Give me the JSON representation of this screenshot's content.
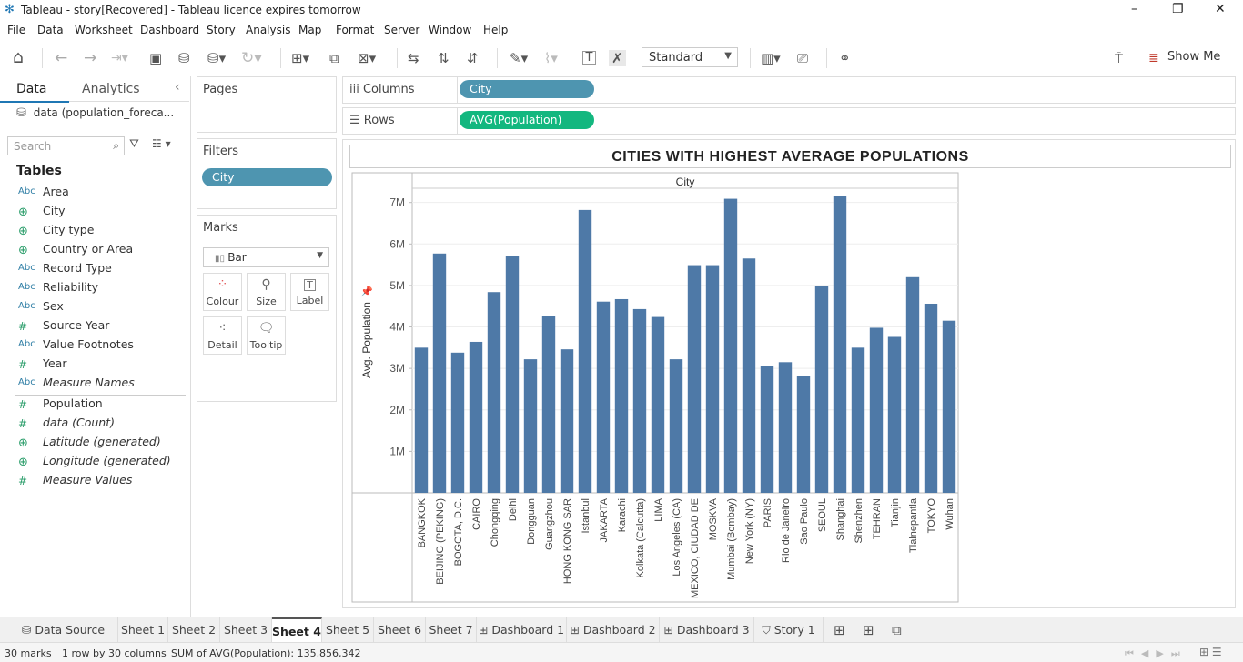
{
  "window": {
    "title": "Tableau - story[Recovered] - Tableau licence expires tomorrow",
    "controls": [
      "–",
      "❐",
      "✕"
    ]
  },
  "menu": [
    "File",
    "Data",
    "Worksheet",
    "Dashboard",
    "Story",
    "Analysis",
    "Map",
    "Format",
    "Server",
    "Window",
    "Help"
  ],
  "toolbar": {
    "fit_mode": "Standard",
    "show_me_label": "Show Me"
  },
  "left_pane": {
    "tab_data": "Data",
    "tab_analytics": "Analytics",
    "data_source": "data (population_foreca...",
    "search_placeholder": "Search",
    "tables_header": "Tables",
    "dimensions": [
      {
        "type": "Abc",
        "name": "Area",
        "italic": false
      },
      {
        "type": "geo",
        "name": "City",
        "italic": false
      },
      {
        "type": "geo",
        "name": "City type",
        "italic": false
      },
      {
        "type": "geo",
        "name": "Country or Area",
        "italic": false
      },
      {
        "type": "Abc",
        "name": "Record Type",
        "italic": false
      },
      {
        "type": "Abc",
        "name": "Reliability",
        "italic": false
      },
      {
        "type": "Abc",
        "name": "Sex",
        "italic": false
      },
      {
        "type": "#",
        "name": "Source Year",
        "italic": false
      },
      {
        "type": "Abc",
        "name": "Value Footnotes",
        "italic": false
      },
      {
        "type": "#",
        "name": "Year",
        "italic": false
      },
      {
        "type": "Abc",
        "name": "Measure Names",
        "italic": true
      }
    ],
    "measures": [
      {
        "type": "#",
        "name": "Population",
        "italic": false
      },
      {
        "type": "#",
        "name": "data (Count)",
        "italic": true
      },
      {
        "type": "geo",
        "name": "Latitude (generated)",
        "italic": true
      },
      {
        "type": "geo",
        "name": "Longitude (generated)",
        "italic": true
      },
      {
        "type": "#",
        "name": "Measure Values",
        "italic": true
      }
    ]
  },
  "cards": {
    "pages": "Pages",
    "filters": "Filters",
    "filter_pill": "City",
    "marks": "Marks",
    "mark_type": "Bar",
    "mark_buttons": [
      "Colour",
      "Size",
      "Label",
      "Detail",
      "Tooltip"
    ]
  },
  "shelves": {
    "columns_label": "Columns",
    "columns_pill": "City",
    "rows_label": "Rows",
    "rows_pill": "AVG(Population)"
  },
  "chart_data": {
    "type": "bar",
    "title": "CITIES WITH HIGHEST AVERAGE POPULATIONS",
    "column_header": "City",
    "ylabel": "Avg. Population",
    "ylim": [
      0,
      7300000
    ],
    "yticks": [
      1000000,
      2000000,
      3000000,
      4000000,
      5000000,
      6000000,
      7000000
    ],
    "ytick_labels": [
      "1M",
      "2M",
      "3M",
      "4M",
      "5M",
      "6M",
      "7M"
    ],
    "bar_color": "#4e79a7",
    "grid": true,
    "categories": [
      "BANGKOK",
      "BEIJING (PEKING)",
      "BOGOTA, D.C.",
      "CAIRO",
      "Chongqing",
      "Delhi",
      "Dongguan",
      "Guangzhou",
      "HONG KONG SAR",
      "Istanbul",
      "JAKARTA",
      "Karachi",
      "Kolkata (Calcutta)",
      "LIMA",
      "Los Angeles (CA)",
      "MEXICO, CIUDAD DE",
      "MOSKVA",
      "Mumbai (Bombay)",
      "New York (NY)",
      "PARIS",
      "Rio de Janeiro",
      "Sao Paulo",
      "SEOUL",
      "Shanghai",
      "Shenzhen",
      "TEHRAN",
      "Tianjin",
      "Tlalnepantla",
      "TOKYO",
      "Wuhan"
    ],
    "values": [
      3500000,
      5770000,
      3380000,
      3640000,
      4840000,
      5700000,
      3220000,
      4260000,
      3460000,
      6820000,
      4610000,
      4670000,
      4430000,
      4240000,
      3220000,
      5490000,
      5490000,
      7090000,
      5650000,
      3060000,
      3150000,
      2820000,
      4980000,
      7150000,
      3500000,
      3980000,
      3760000,
      5200000,
      4560000,
      4150000
    ]
  },
  "sheet_tabs": [
    {
      "label": "Data Source",
      "icon": "⛁",
      "active": false
    },
    {
      "label": "Sheet 1",
      "icon": "",
      "active": false
    },
    {
      "label": "Sheet 2",
      "icon": "",
      "active": false
    },
    {
      "label": "Sheet 3",
      "icon": "",
      "active": false
    },
    {
      "label": "Sheet 4",
      "icon": "",
      "active": true
    },
    {
      "label": "Sheet 5",
      "icon": "",
      "active": false
    },
    {
      "label": "Sheet 6",
      "icon": "",
      "active": false
    },
    {
      "label": "Sheet 7",
      "icon": "",
      "active": false
    },
    {
      "label": "Dashboard 1",
      "icon": "⊞",
      "active": false
    },
    {
      "label": "Dashboard 2",
      "icon": "⊞",
      "active": false
    },
    {
      "label": "Dashboard 3",
      "icon": "⊞",
      "active": false
    },
    {
      "label": "Story 1",
      "icon": "⛉",
      "active": false
    }
  ],
  "status": {
    "marks": "30 marks",
    "dims": "1 row by 30 columns",
    "sum": "SUM of AVG(Population): 135,856,342"
  }
}
